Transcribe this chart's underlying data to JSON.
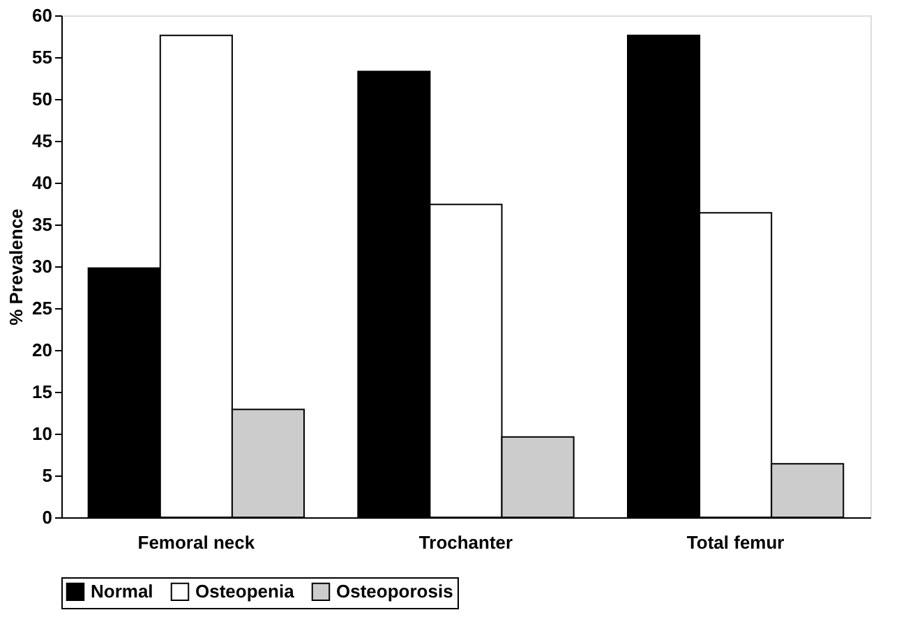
{
  "chart_data": {
    "type": "bar",
    "ylabel": "% Prevalence",
    "categories": [
      "Femoral neck",
      "Trochanter",
      "Total femur"
    ],
    "series": [
      {
        "name": "Normal",
        "color": "#000000",
        "values": [
          29.8,
          53.3,
          57.6
        ]
      },
      {
        "name": "Osteopenia",
        "color": "#ffffff",
        "values": [
          57.6,
          37.4,
          36.4
        ]
      },
      {
        "name": "Osteoporosis",
        "color": "#cccccc",
        "values": [
          12.9,
          9.6,
          6.4
        ]
      }
    ],
    "ylim": [
      0,
      60
    ],
    "yticks": [
      0,
      5,
      10,
      15,
      20,
      25,
      30,
      35,
      40,
      45,
      50,
      55,
      60
    ],
    "grid": false,
    "legend": "bottom"
  }
}
